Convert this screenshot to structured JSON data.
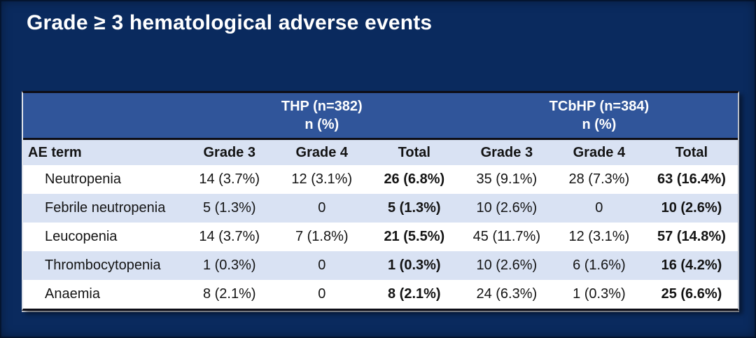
{
  "slide": {
    "title": "Grade ≥ 3 hematological adverse events"
  },
  "colors": {
    "slide_background": "#0a2a5e",
    "group_header_blue": "#30559a",
    "light_row_blue": "#d9e2f3",
    "white_row": "#ffffff",
    "title_text": "#ffffff",
    "table_text": "#131313",
    "divider_black": "#0d0d16"
  },
  "table": {
    "group_headers": [
      {
        "label": "THP (n=382)",
        "sublabel": "n (%)"
      },
      {
        "label": "TCbHP (n=384)",
        "sublabel": "n (%)"
      }
    ],
    "column_headers": [
      "AE term",
      "Grade 3",
      "Grade 4",
      "Total",
      "Grade 3",
      "Grade 4",
      "Total"
    ],
    "rows": [
      {
        "label": "Neutropenia",
        "values": [
          "14 (3.7%)",
          "12 (3.1%)",
          "26 (6.8%)",
          "35 (9.1%)",
          "28 (7.3%)",
          "63 (16.4%)"
        ]
      },
      {
        "label": "Febrile neutropenia",
        "values": [
          "5 (1.3%)",
          "0",
          "5 (1.3%)",
          "10 (2.6%)",
          "0",
          "10 (2.6%)"
        ]
      },
      {
        "label": "Leucopenia",
        "values": [
          "14 (3.7%)",
          "7 (1.8%)",
          "21 (5.5%)",
          "45 (11.7%)",
          "12 (3.1%)",
          "57 (14.8%)"
        ]
      },
      {
        "label": "Thrombocytopenia",
        "values": [
          "1 (0.3%)",
          "0",
          "1 (0.3%)",
          "10 (2.6%)",
          "6 (1.6%)",
          "16 (4.2%)"
        ]
      },
      {
        "label": "Anaemia",
        "values": [
          "8 (2.1%)",
          "0",
          "8 (2.1%)",
          "24 (6.3%)",
          "1 (0.3%)",
          "25 (6.6%)"
        ]
      }
    ]
  }
}
